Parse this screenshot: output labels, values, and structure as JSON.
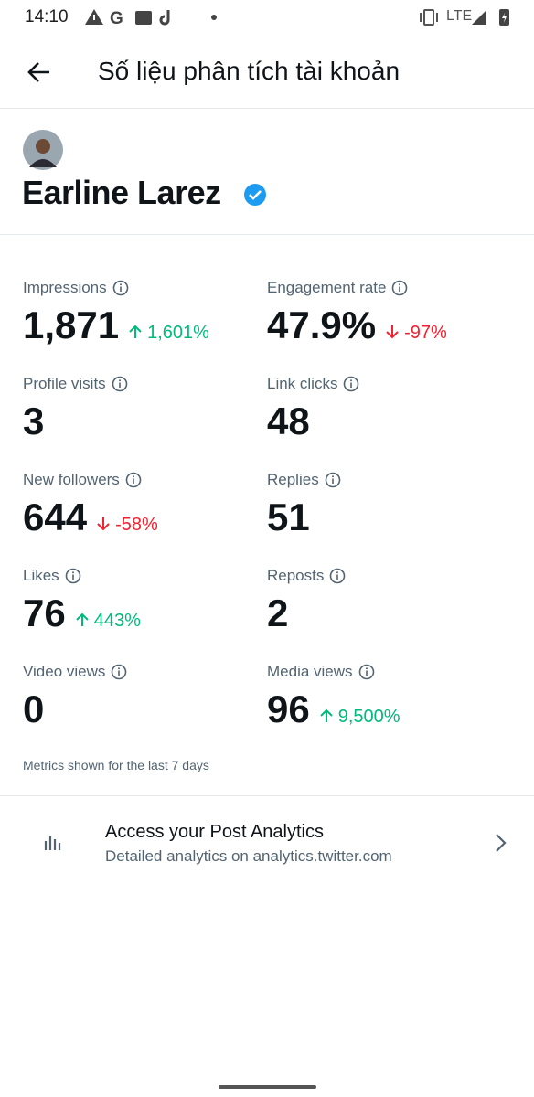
{
  "status": {
    "time": "14:10",
    "network": "LTE"
  },
  "header": {
    "title": "Số liệu phân tích tài khoản"
  },
  "profile": {
    "name": "Earline Larez"
  },
  "metrics": [
    {
      "label": "Impressions",
      "value": "1,871",
      "change": "1,601%"
    },
    {
      "label": "Engagement rate",
      "value": "47.9%",
      "change": "-97%"
    },
    {
      "label": "Profile visits",
      "value": "3"
    },
    {
      "label": "Link clicks",
      "value": "48"
    },
    {
      "label": "New followers",
      "value": "644",
      "change": "-58%"
    },
    {
      "label": "Replies",
      "value": "51"
    },
    {
      "label": "Likes",
      "value": "76",
      "change": "443%"
    },
    {
      "label": "Reposts",
      "value": "2"
    },
    {
      "label": "Video views",
      "value": "0"
    },
    {
      "label": "Media views",
      "value": "96",
      "change": "9,500%"
    }
  ],
  "footnote": "Metrics shown for the last 7 days",
  "link": {
    "title": "Access your Post Analytics",
    "subtitle": "Detailed analytics on analytics.twitter.com"
  }
}
